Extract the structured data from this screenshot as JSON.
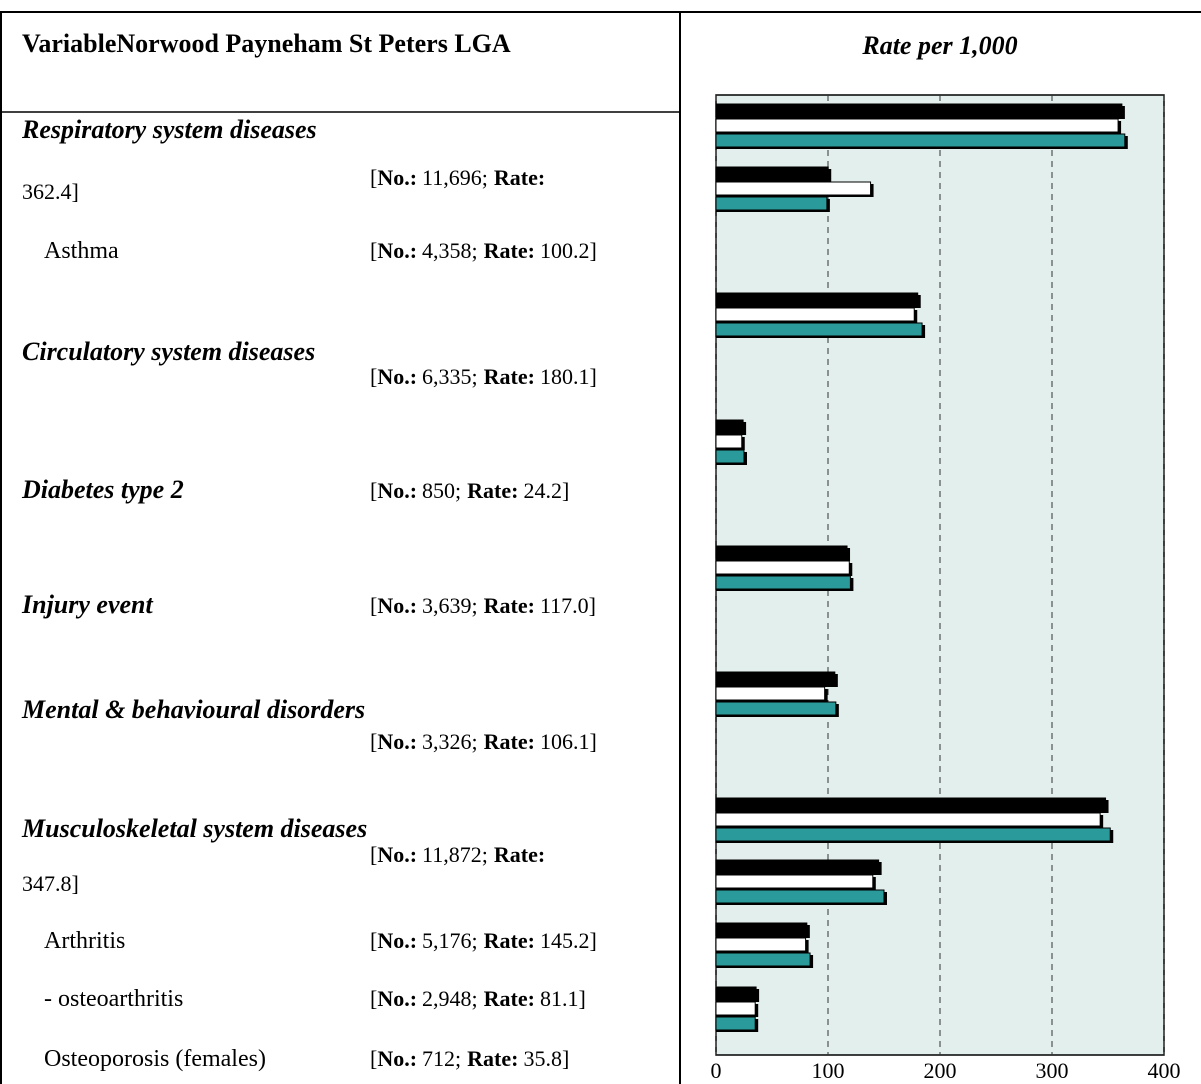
{
  "header": {
    "variable": "VariableNorwood Payneham St Peters LGA"
  },
  "bracket": {
    "open": "[",
    "no_label": "No.:",
    "sep": ";",
    "rate_label": "Rate:",
    "close": "]"
  },
  "table": {
    "rows": [
      {
        "label": "Respiratory system diseases",
        "no": "11,696",
        "rate": "362.4"
      },
      {
        "label": "Asthma",
        "no": "4,358",
        "rate": "100.2"
      },
      {
        "label": "Circulatory system diseases",
        "no": "6,335",
        "rate": "180.1"
      },
      {
        "label": "Diabetes type 2",
        "no": "850",
        "rate": "24.2"
      },
      {
        "label": "Injury event",
        "no": "3,639",
        "rate": "117.0"
      },
      {
        "label": "Mental & behavioural disorders",
        "no": "3,326",
        "rate": "106.1"
      },
      {
        "label": "Musculoskeletal system diseases",
        "no": "11,872",
        "rate": "347.8"
      },
      {
        "label": "Arthritis",
        "no": "5,176",
        "rate": "145.2"
      },
      {
        "label": "- osteoarthritis",
        "no": "2,948",
        "rate": "81.1"
      },
      {
        "label": "Osteoporosis (females)",
        "no": "712",
        "rate": "35.8"
      }
    ]
  },
  "chart_data": {
    "type": "barh",
    "title": "Rate per 1,000",
    "series": [
      {
        "color": "#000000",
        "values": [
          362.4,
          100.2,
          180.1,
          24.2,
          117.0,
          106.1,
          347.8,
          145.2,
          81.1,
          35.8
        ]
      },
      {
        "color": "#ffffff",
        "values": [
          359,
          138,
          177,
          23,
          119,
          97,
          343,
          140,
          80,
          35
        ]
      },
      {
        "color": "#2a9a9a",
        "values": [
          365,
          99,
          184,
          25,
          120,
          107,
          352,
          150,
          84,
          35
        ]
      }
    ],
    "xlim": [
      0,
      400
    ],
    "xticks": [
      0,
      100,
      200,
      300,
      400
    ],
    "grid": true,
    "background": "#e3efed"
  }
}
